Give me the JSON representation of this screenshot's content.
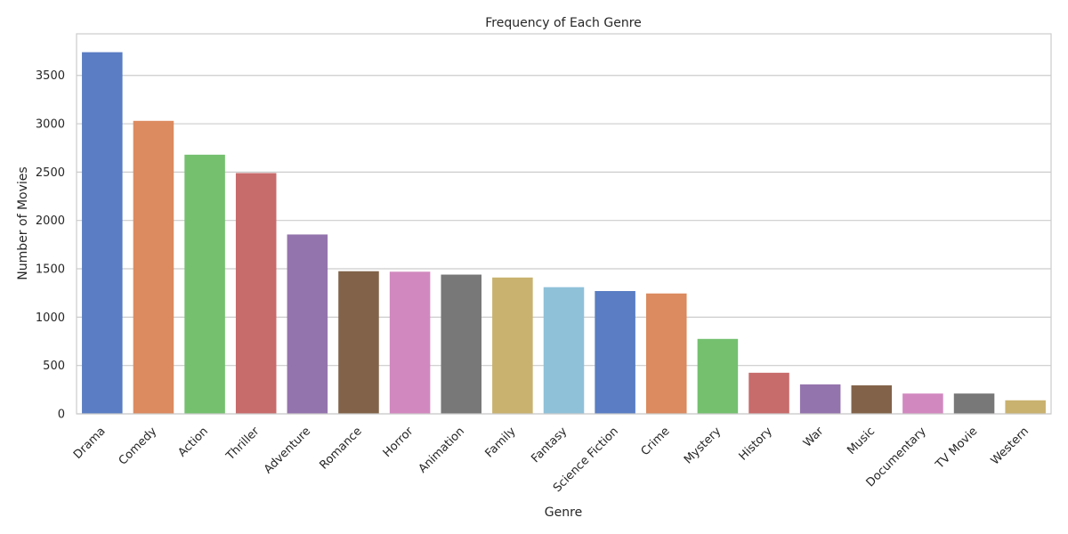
{
  "chart_data": {
    "type": "bar",
    "title": "Frequency of Each Genre",
    "xlabel": "Genre",
    "ylabel": "Number of Movies",
    "categories": [
      "Drama",
      "Comedy",
      "Action",
      "Thriller",
      "Adventure",
      "Romance",
      "Horror",
      "Animation",
      "Family",
      "Fantasy",
      "Science Fiction",
      "Crime",
      "Mystery",
      "History",
      "War",
      "Music",
      "Documentary",
      "TV Movie",
      "Western"
    ],
    "values": [
      3740,
      3030,
      2680,
      2490,
      1855,
      1475,
      1470,
      1440,
      1410,
      1310,
      1270,
      1245,
      775,
      425,
      305,
      295,
      210,
      210,
      140
    ],
    "colors": [
      "#5a7dc3",
      "#dc8a5f",
      "#74c06f",
      "#c86b6b",
      "#9474ad",
      "#82634a",
      "#d188bf",
      "#787878",
      "#c9b26f",
      "#8fc1d9",
      "#5a7dc3",
      "#dc8a5f",
      "#74c06f",
      "#c86b6b",
      "#9474ad",
      "#82634a",
      "#d188bf",
      "#787878",
      "#c9b26f"
    ],
    "yticks": [
      0,
      500,
      1000,
      1500,
      2000,
      2500,
      3000,
      3500
    ],
    "ylim": [
      0,
      3930
    ],
    "grid": true,
    "legend": false
  }
}
